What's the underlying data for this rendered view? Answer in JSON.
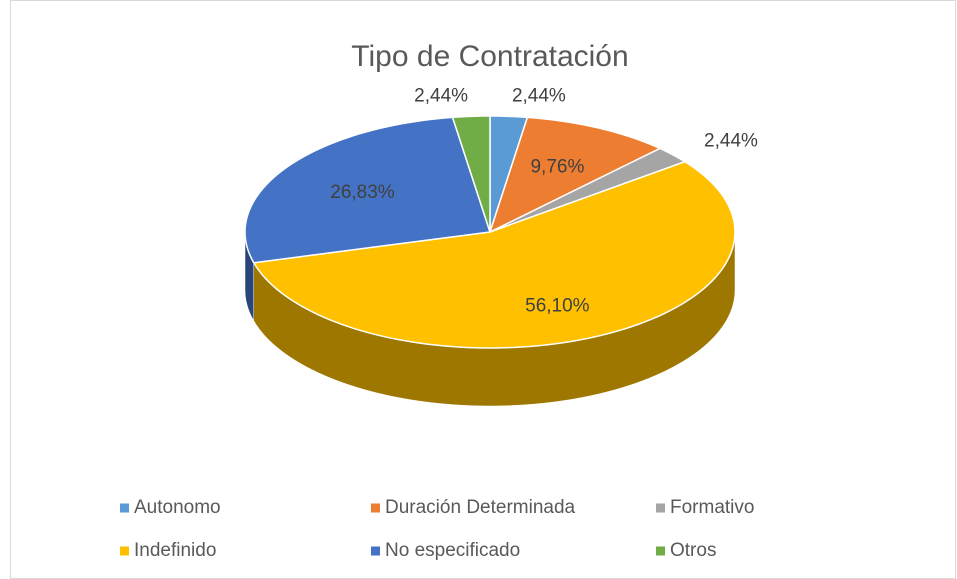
{
  "chart_data": {
    "type": "pie3d",
    "title": "Tipo de Contratación",
    "categories": [
      "Autonomo",
      "Duración Determinada",
      "Formativo",
      "Indefinido",
      "No especificado",
      "Otros"
    ],
    "values": [
      2.44,
      9.76,
      2.44,
      56.1,
      26.83,
      2.44
    ],
    "value_labels": [
      "2,44%",
      "9,76%",
      "2,44%",
      "56,10%",
      "26,83%",
      "2,44%"
    ],
    "colors": [
      "#5b9bd5",
      "#ed7d31",
      "#a5a5a5",
      "#ffc000",
      "#4472c4",
      "#70ad47"
    ],
    "legend": "bottom"
  }
}
